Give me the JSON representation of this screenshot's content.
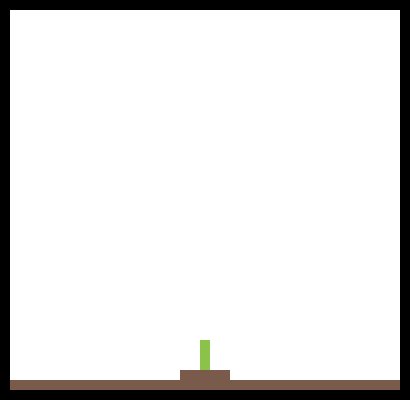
{
  "game": {
    "colors": {
      "frame": "#000000",
      "background": "#ffffff",
      "ground": "#7a5a4a",
      "pot": "#7a5a4a",
      "sprout": "#8bc34a"
    }
  }
}
